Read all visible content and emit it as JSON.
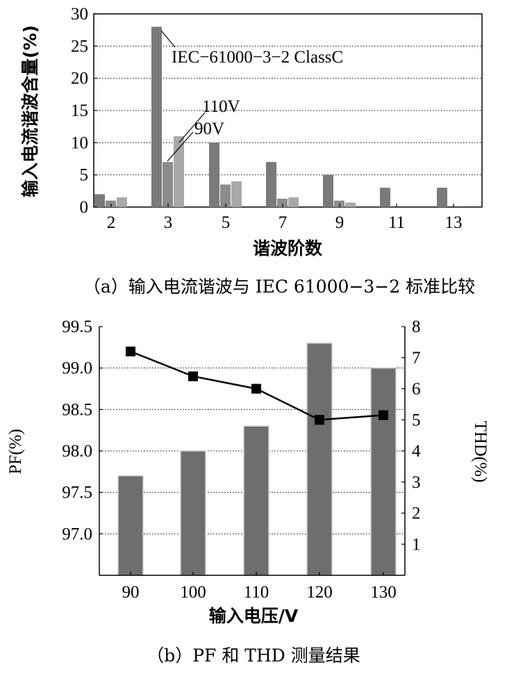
{
  "chart_data": [
    {
      "type": "bar",
      "caption": "（a）输入电流谐波与 IEC 61000−3−2 标准比较",
      "xlabel": "谐波阶数",
      "ylabel": "输入电流谐波含量(%)",
      "ylim": [
        0,
        30
      ],
      "yticks": [
        "0",
        "5",
        "10",
        "15",
        "20",
        "25",
        "30"
      ],
      "grid": "horizontal dotted",
      "categories": [
        "2",
        "3",
        "5",
        "7",
        "9",
        "11",
        "13"
      ],
      "series": [
        {
          "name": "IEC−61000−3−2 ClassC",
          "values": [
            2,
            28,
            10,
            7,
            5,
            3,
            3
          ]
        },
        {
          "name": "110V",
          "values": [
            1,
            7,
            3.5,
            1.3,
            1,
            0,
            0
          ]
        },
        {
          "name": "90V",
          "values": [
            1.5,
            11,
            4,
            1.5,
            0.7,
            0,
            0
          ]
        }
      ],
      "colors": [
        "#7a7a7a",
        "#8c8c8c",
        "#a8a8a8"
      ]
    },
    {
      "type": "bar+line",
      "caption": "（b）PF 和 THD 测量结果",
      "xlabel": "输入电压/V",
      "ylabel_left": "PF(%)",
      "ylabel_right": "THD(%)",
      "categories": [
        "90",
        "100",
        "110",
        "120",
        "130"
      ],
      "ylim_left": [
        96.5,
        99.5
      ],
      "yticks_left": [
        "99.5",
        "99.0",
        "98.5",
        "98.0",
        "97.5",
        "97.0"
      ],
      "ylim_right": [
        0,
        8
      ],
      "yticks_right": [
        "8",
        "7",
        "6",
        "5",
        "4",
        "3",
        "2",
        "1"
      ],
      "grid": "horizontal dotted",
      "pf_values": [
        97.7,
        98.0,
        98.3,
        99.3,
        99.0
      ],
      "thd_values": [
        7.2,
        6.4,
        6.0,
        5.0,
        5.15
      ],
      "colors": {
        "bar": "#6e6e6e",
        "line": "#000000"
      }
    }
  ]
}
